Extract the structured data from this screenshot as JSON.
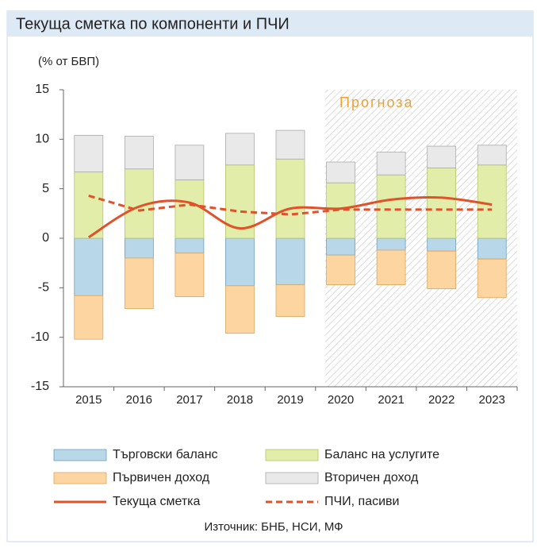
{
  "chart_data": {
    "type": "bar",
    "title": "Текуща сметка по компоненти и ПЧИ",
    "y_label": "(% от БВП)",
    "annotation": "Прогноза",
    "forecast_from": "2020",
    "categories": [
      "2015",
      "2016",
      "2017",
      "2018",
      "2019",
      "2020",
      "2021",
      "2022",
      "2023"
    ],
    "series": [
      {
        "name": "Търговски баланс",
        "kind": "bar",
        "color": "#b8d7e8",
        "values": [
          -5.8,
          -2.0,
          -1.5,
          -4.8,
          -4.7,
          -1.7,
          -1.2,
          -1.3,
          -2.1
        ]
      },
      {
        "name": "Баланс на услугите",
        "kind": "bar",
        "color": "#e3edaa",
        "values": [
          6.7,
          7.0,
          5.9,
          7.4,
          8.0,
          5.6,
          6.4,
          7.1,
          7.4
        ]
      },
      {
        "name": "Първичен доход",
        "kind": "bar",
        "color": "#fdd5a0",
        "values": [
          -4.4,
          -5.1,
          -4.4,
          -4.8,
          -3.2,
          -3.0,
          -3.5,
          -3.8,
          -3.9
        ]
      },
      {
        "name": "Вторичен доход",
        "kind": "bar",
        "color": "#e9e9e9",
        "values": [
          3.7,
          3.3,
          3.5,
          3.2,
          2.9,
          2.1,
          2.3,
          2.2,
          2.0
        ]
      },
      {
        "name": "Текуща сметка",
        "kind": "line",
        "color": "#e0522a",
        "values": [
          0.1,
          3.2,
          3.6,
          1.0,
          3.0,
          3.0,
          3.9,
          4.1,
          3.4
        ]
      },
      {
        "name": "ПЧИ, пасиви",
        "kind": "line",
        "dashed": true,
        "color": "#e0522a",
        "values": [
          4.3,
          2.8,
          3.4,
          2.7,
          2.4,
          2.9,
          2.9,
          2.9,
          2.9
        ]
      }
    ],
    "ylim": [
      -15,
      15
    ],
    "yticks": [
      -15,
      -10,
      -5,
      0,
      5,
      10,
      15
    ],
    "source": "Източник: БНБ, НСИ, МФ"
  }
}
